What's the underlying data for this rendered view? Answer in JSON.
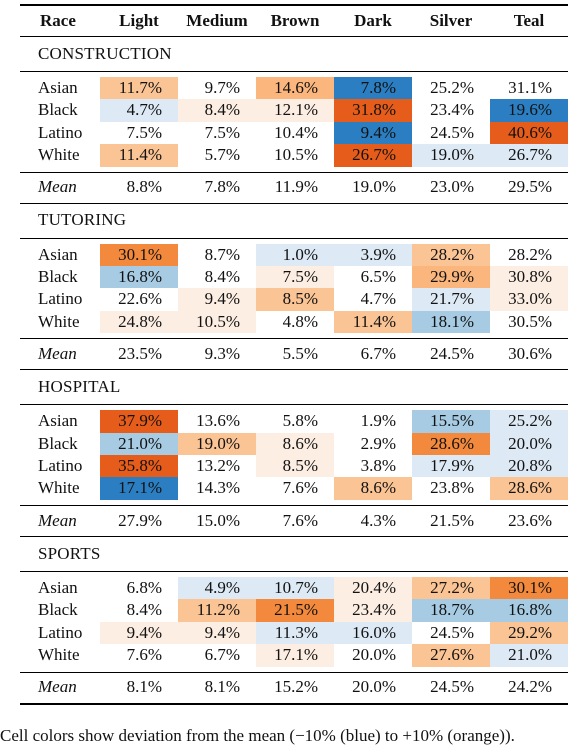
{
  "columns": [
    "Race",
    "Light",
    "Medium",
    "Brown",
    "Dark",
    "Silver",
    "Teal"
  ],
  "sections": [
    {
      "title": "CONSTRUCTION",
      "rows": [
        {
          "race": "Asian",
          "values": [
            "11.7%",
            "9.7%",
            "14.6%",
            "7.8%",
            "25.2%",
            "31.1%"
          ],
          "colors": [
            "#fbc495",
            "#ffffff",
            "#fbb67e",
            "#2b7ec1",
            "#ffffff",
            "#ffffff"
          ]
        },
        {
          "race": "Black",
          "values": [
            "4.7%",
            "8.4%",
            "12.1%",
            "31.8%",
            "23.4%",
            "19.6%"
          ],
          "colors": [
            "#dde9f4",
            "#fdeee3",
            "#fdeee3",
            "#e65c1a",
            "#ffffff",
            "#2b7ec1"
          ]
        },
        {
          "race": "Latino",
          "values": [
            "7.5%",
            "7.5%",
            "10.4%",
            "9.4%",
            "24.5%",
            "40.6%"
          ],
          "colors": [
            "#ffffff",
            "#ffffff",
            "#ffffff",
            "#2b7ec1",
            "#ffffff",
            "#e65c1a"
          ]
        },
        {
          "race": "White",
          "values": [
            "11.4%",
            "5.7%",
            "10.5%",
            "26.7%",
            "19.0%",
            "26.7%"
          ],
          "colors": [
            "#fbc495",
            "#ffffff",
            "#ffffff",
            "#e65c1a",
            "#dde9f4",
            "#dde9f4"
          ]
        }
      ],
      "mean": [
        "8.8%",
        "7.8%",
        "11.9%",
        "19.0%",
        "23.0%",
        "29.5%"
      ]
    },
    {
      "title": "TUTORING",
      "rows": [
        {
          "race": "Asian",
          "values": [
            "30.1%",
            "8.7%",
            "1.0%",
            "3.9%",
            "28.2%",
            "28.2%"
          ],
          "colors": [
            "#f3893d",
            "#ffffff",
            "#dde9f4",
            "#dde9f4",
            "#fbc495",
            "#ffffff"
          ]
        },
        {
          "race": "Black",
          "values": [
            "16.8%",
            "8.4%",
            "7.5%",
            "6.5%",
            "29.9%",
            "30.8%"
          ],
          "colors": [
            "#a6cbe3",
            "#ffffff",
            "#fdeee3",
            "#ffffff",
            "#fbb67e",
            "#fdeee3"
          ]
        },
        {
          "race": "Latino",
          "values": [
            "22.6%",
            "9.4%",
            "8.5%",
            "4.7%",
            "21.7%",
            "33.0%"
          ],
          "colors": [
            "#ffffff",
            "#fdeee3",
            "#fbc495",
            "#ffffff",
            "#dde9f4",
            "#fdeee3"
          ]
        },
        {
          "race": "White",
          "values": [
            "24.8%",
            "10.5%",
            "4.8%",
            "11.4%",
            "18.1%",
            "30.5%"
          ],
          "colors": [
            "#fdeee3",
            "#fdeee3",
            "#ffffff",
            "#fbc495",
            "#a6cbe3",
            "#ffffff"
          ]
        }
      ],
      "mean": [
        "23.5%",
        "9.3%",
        "5.5%",
        "6.7%",
        "24.5%",
        "30.6%"
      ]
    },
    {
      "title": "HOSPITAL",
      "rows": [
        {
          "race": "Asian",
          "values": [
            "37.9%",
            "13.6%",
            "5.8%",
            "1.9%",
            "15.5%",
            "25.2%"
          ],
          "colors": [
            "#e65c1a",
            "#ffffff",
            "#ffffff",
            "#ffffff",
            "#a6cbe3",
            "#dde9f4"
          ]
        },
        {
          "race": "Black",
          "values": [
            "21.0%",
            "19.0%",
            "8.6%",
            "2.9%",
            "28.6%",
            "20.0%"
          ],
          "colors": [
            "#a6cbe3",
            "#fbc495",
            "#fdeee3",
            "#ffffff",
            "#f3893d",
            "#dde9f4"
          ]
        },
        {
          "race": "Latino",
          "values": [
            "35.8%",
            "13.2%",
            "8.5%",
            "3.8%",
            "17.9%",
            "20.8%"
          ],
          "colors": [
            "#e65c1a",
            "#ffffff",
            "#fdeee3",
            "#ffffff",
            "#dde9f4",
            "#dde9f4"
          ]
        },
        {
          "race": "White",
          "values": [
            "17.1%",
            "14.3%",
            "7.6%",
            "8.6%",
            "23.8%",
            "28.6%"
          ],
          "colors": [
            "#2b7ec1",
            "#ffffff",
            "#ffffff",
            "#fbc495",
            "#ffffff",
            "#fbc495"
          ]
        }
      ],
      "mean": [
        "27.9%",
        "15.0%",
        "7.6%",
        "4.3%",
        "21.5%",
        "23.6%"
      ]
    },
    {
      "title": "SPORTS",
      "rows": [
        {
          "race": "Asian",
          "values": [
            "6.8%",
            "4.9%",
            "10.7%",
            "20.4%",
            "27.2%",
            "30.1%"
          ],
          "colors": [
            "#ffffff",
            "#dde9f4",
            "#dde9f4",
            "#fdeee3",
            "#fbc495",
            "#f3893d"
          ]
        },
        {
          "race": "Black",
          "values": [
            "8.4%",
            "11.2%",
            "21.5%",
            "23.4%",
            "18.7%",
            "16.8%"
          ],
          "colors": [
            "#ffffff",
            "#fbc495",
            "#f3893d",
            "#fdeee3",
            "#a6cbe3",
            "#a6cbe3"
          ]
        },
        {
          "race": "Latino",
          "values": [
            "9.4%",
            "9.4%",
            "11.3%",
            "16.0%",
            "24.5%",
            "29.2%"
          ],
          "colors": [
            "#fdeee3",
            "#fdeee3",
            "#dde9f4",
            "#dde9f4",
            "#ffffff",
            "#fbc495"
          ]
        },
        {
          "race": "White",
          "values": [
            "7.6%",
            "6.7%",
            "17.1%",
            "20.0%",
            "27.6%",
            "21.0%"
          ],
          "colors": [
            "#ffffff",
            "#ffffff",
            "#fdeee3",
            "#ffffff",
            "#fbc495",
            "#dde9f4"
          ]
        }
      ],
      "mean": [
        "8.1%",
        "8.1%",
        "15.2%",
        "20.0%",
        "24.5%",
        "24.2%"
      ]
    }
  ],
  "mean_label": "Mean",
  "caption": "Cell colors show deviation from the mean (−10% (blue) to +10% (orange))."
}
